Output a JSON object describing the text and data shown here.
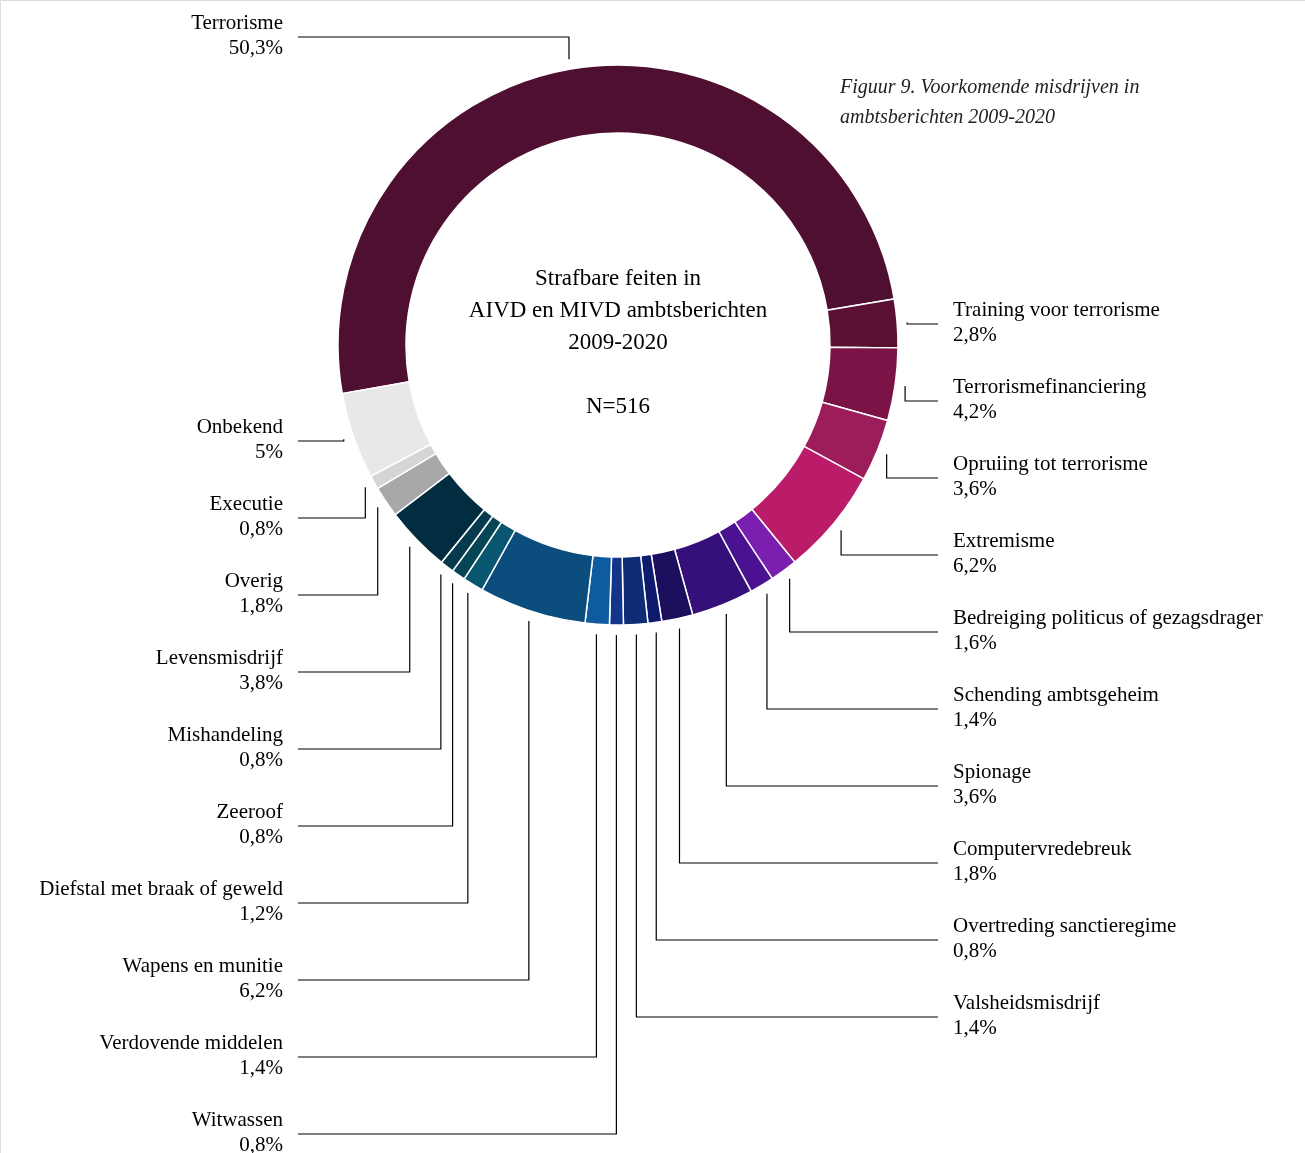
{
  "chart_data": {
    "type": "donut",
    "title": "Figuur 9. Voorkomende misdrijven in\nambtsberichten 2009-2020",
    "annotations": [
      "Strafbare feiten in\nAIVD en MIVD ambtsberichten\n2009-2020",
      "N=516"
    ],
    "categories": [
      "Terrorisme",
      "Training voor terrorisme",
      "Terrorismefinanciering",
      "Opruiing tot terrorisme",
      "Extremisme",
      "Bedreiging politicus of gezagsdrager",
      "Schending ambtsgeheim",
      "Spionage",
      "Computervredebreuk",
      "Overtreding sanctieregime",
      "Valsheidsmisdrijf",
      "Witwassen",
      "Verdovende middelen",
      "Wapens en munitie",
      "Diefstal met braak of geweld",
      "Zeeroof",
      "Mishandeling",
      "Levensmisdrijf",
      "Overig",
      "Executie",
      "Onbekend"
    ],
    "values": [
      50.3,
      2.8,
      4.2,
      3.6,
      6.2,
      1.6,
      1.4,
      3.6,
      1.8,
      0.8,
      1.4,
      0.8,
      1.4,
      6.2,
      1.2,
      0.8,
      0.8,
      3.8,
      1.8,
      0.8,
      5
    ],
    "colors": [
      "#4e0f30",
      "#5a1033",
      "#7c1347",
      "#9c1c5c",
      "#bb1c6a",
      "#7a1fb0",
      "#4a1290",
      "#36107a",
      "#1c0f5e",
      "#0e1a6e",
      "#0e2d75",
      "#12348a",
      "#0f5ba0",
      "#0b4e7d",
      "#085670",
      "#064555",
      "#053a4f",
      "#022d40",
      "#a8a8a8",
      "#d5d5d5",
      "#e8e8e8"
    ],
    "value_labels": [
      "50,3%",
      "2,8%",
      "4,2%",
      "3,6%",
      "6,2%",
      "1,6%",
      "1,4%",
      "3,6%",
      "1,8%",
      "0,8%",
      "1,4%",
      "0,8%",
      "1,4%",
      "6,2%",
      "1,2%",
      "0,8%",
      "0,8%",
      "3,8%",
      "1,8%",
      "0,8%",
      "5%"
    ]
  }
}
